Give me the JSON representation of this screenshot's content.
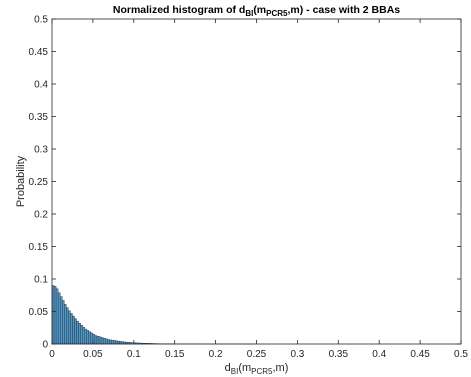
{
  "chart_data": {
    "type": "bar",
    "title_parts": {
      "prefix": "Normalized histogram of d",
      "sub1": "BI",
      "mid": "(m",
      "sub2": "PCR5",
      "suffix": ",m) - case with 2 BBAs"
    },
    "xlabel_parts": {
      "base": "d",
      "sub1": "BI",
      "mid": "(m",
      "sub2": "PCR5",
      "suffix": ",m)"
    },
    "ylabel": "Probability",
    "xlim": [
      0,
      0.5
    ],
    "ylim": [
      0,
      0.5
    ],
    "xticks": [
      "0",
      "0.05",
      "0.1",
      "0.15",
      "0.2",
      "0.25",
      "0.3",
      "0.35",
      "0.4",
      "0.45",
      "0.5"
    ],
    "yticks": [
      "0",
      "0.05",
      "0.1",
      "0.15",
      "0.2",
      "0.25",
      "0.3",
      "0.35",
      "0.4",
      "0.45",
      "0.5"
    ],
    "grid": false,
    "bar_color": "#4f96c8",
    "bar_edge_color": "#1a1a1a",
    "bin_width": 0.0025,
    "bin_start": 0,
    "values": [
      0.09,
      0.089,
      0.085,
      0.079,
      0.073,
      0.067,
      0.061,
      0.056,
      0.051,
      0.047,
      0.043,
      0.039,
      0.035,
      0.032,
      0.029,
      0.026,
      0.023,
      0.021,
      0.019,
      0.017,
      0.015,
      0.013,
      0.012,
      0.011,
      0.01,
      0.009,
      0.008,
      0.007,
      0.0065,
      0.006,
      0.0055,
      0.005,
      0.0045,
      0.004,
      0.0036,
      0.0032,
      0.0029,
      0.0026,
      0.0023,
      0.0021,
      0.0019,
      0.0017,
      0.0015,
      0.0014,
      0.0013,
      0.0012,
      0.0011,
      0.001,
      0.0009,
      0.0008,
      0.0007,
      0.0006,
      0.0006,
      0.0005,
      0.0005,
      0.0004,
      0.0004,
      0.0003,
      0.0003,
      0.0003,
      0.0002,
      0.0002,
      0.0002,
      0.0002,
      0.0001,
      0.0001,
      0.0001,
      0.0001,
      0.0001,
      0.0001,
      0.0001,
      0.0001,
      0.0001,
      5e-05,
      5e-05,
      5e-05,
      5e-05,
      5e-05,
      5e-05,
      5e-05,
      5e-05,
      5e-05,
      5e-05,
      5e-05,
      5e-05,
      5e-05,
      5e-05,
      5e-05,
      5e-05,
      5e-05,
      5e-05,
      5e-05,
      5e-05,
      5e-05,
      5e-05,
      5e-05,
      5e-05,
      5e-05,
      5e-05,
      5e-05
    ]
  }
}
